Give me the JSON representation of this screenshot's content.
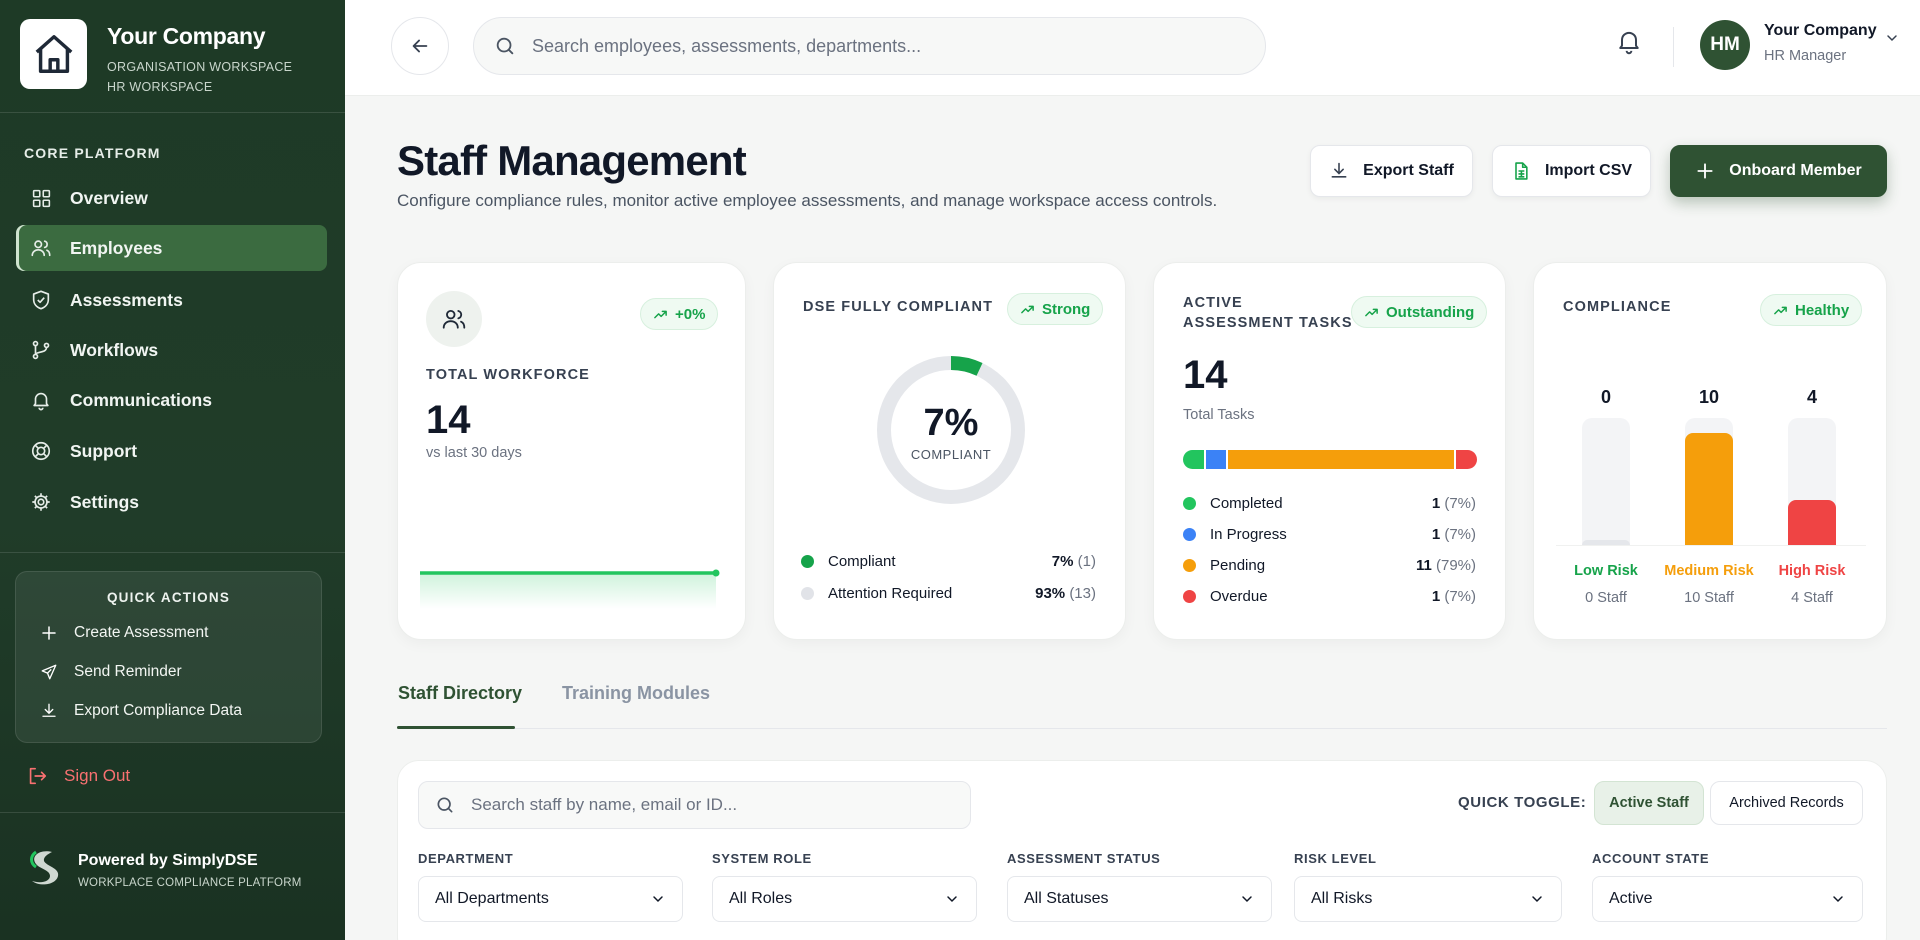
{
  "brand": {
    "name": "Your Company",
    "sub1": "ORGANISATION WORKSPACE",
    "sub2": "HR WORKSPACE",
    "icon": "house-icon"
  },
  "sidebar": {
    "section_title": "CORE PLATFORM",
    "items": [
      {
        "label": "Overview",
        "icon": "grid-icon"
      },
      {
        "label": "Employees",
        "icon": "users-icon",
        "active": true
      },
      {
        "label": "Assessments",
        "icon": "shield-check-icon"
      },
      {
        "label": "Workflows",
        "icon": "git-branch-icon"
      },
      {
        "label": "Communications",
        "icon": "bell-icon"
      },
      {
        "label": "Support",
        "icon": "lifebuoy-icon"
      },
      {
        "label": "Settings",
        "icon": "gear-icon"
      }
    ],
    "quick_actions": {
      "title": "QUICK ACTIONS",
      "items": [
        {
          "label": "Create Assessment",
          "icon": "plus-icon"
        },
        {
          "label": "Send Reminder",
          "icon": "send-icon"
        },
        {
          "label": "Export Compliance Data",
          "icon": "download-icon"
        }
      ]
    },
    "sign_out": "Sign Out",
    "powered_by": {
      "title": "Powered by SimplyDSE",
      "sub": "WORKPLACE COMPLIANCE PLATFORM"
    }
  },
  "topbar": {
    "search_placeholder": "Search employees, assessments, departments...",
    "user": {
      "initials": "HM",
      "name": "Your Company",
      "role": "HR Manager"
    }
  },
  "header": {
    "title": "Staff Management",
    "description": "Configure compliance rules, monitor active employee assessments, and manage workspace access controls.",
    "buttons": {
      "export": "Export Staff",
      "import": "Import CSV",
      "onboard": "Onboard Member"
    }
  },
  "cards": {
    "workforce": {
      "badge": "+0%",
      "label": "TOTAL WORKFORCE",
      "value": "14",
      "sub": "vs last 30 days"
    },
    "dse": {
      "label": "DSE FULLY COMPLIANT",
      "badge": "Strong",
      "percent": "7%",
      "percent_value": 7,
      "center_label": "COMPLIANT",
      "legend": [
        {
          "label": "Compliant",
          "pct": "7%",
          "count": "(1)",
          "color": "#16a34a"
        },
        {
          "label": "Attention Required",
          "pct": "93%",
          "count": "(13)",
          "color": "#e5e7eb"
        }
      ]
    },
    "tasks": {
      "label_line1": "ACTIVE",
      "label_line2": "ASSESSMENT TASKS",
      "badge": "Outstanding",
      "value": "14",
      "sub": "Total Tasks",
      "segments": [
        {
          "label": "Completed",
          "value": 1,
          "count": "1",
          "pct": "(7%)",
          "color": "#22c55e"
        },
        {
          "label": "In Progress",
          "value": 1,
          "count": "1",
          "pct": "(7%)",
          "color": "#3b82f6"
        },
        {
          "label": "Pending",
          "value": 11,
          "count": "11",
          "pct": "(79%)",
          "color": "#f59e0b"
        },
        {
          "label": "Overdue",
          "value": 1,
          "count": "1",
          "pct": "(7%)",
          "color": "#ef4444"
        }
      ]
    },
    "compliance": {
      "label": "COMPLIANCE",
      "badge": "Healthy",
      "bars": [
        {
          "value": "0",
          "level": 0,
          "name": "Low Risk",
          "staff": "0 Staff",
          "color": "#16a34a",
          "fill": "#e5e7eb"
        },
        {
          "value": "10",
          "level": 10,
          "name": "Medium Risk",
          "staff": "10 Staff",
          "color": "#f59e0b",
          "fill": "#f59e0b"
        },
        {
          "value": "4",
          "level": 4,
          "name": "High Risk",
          "staff": "4 Staff",
          "color": "#ef4444",
          "fill": "#ef4444"
        }
      ],
      "max": 10
    }
  },
  "tabs": [
    {
      "label": "Staff Directory",
      "active": true
    },
    {
      "label": "Training Modules"
    }
  ],
  "filters": {
    "search_placeholder": "Search staff by name, email or ID...",
    "quick_toggle_label": "QUICK TOGGLE:",
    "toggles": [
      {
        "label": "Active Staff",
        "on": true
      },
      {
        "label": "Archived Records"
      }
    ],
    "dropdowns": [
      {
        "label": "DEPARTMENT",
        "value": "All Departments"
      },
      {
        "label": "SYSTEM ROLE",
        "value": "All Roles"
      },
      {
        "label": "ASSESSMENT STATUS",
        "value": "All Statuses"
      },
      {
        "label": "RISK LEVEL",
        "value": "All Risks"
      },
      {
        "label": "ACCOUNT STATE",
        "value": "Active"
      }
    ]
  }
}
